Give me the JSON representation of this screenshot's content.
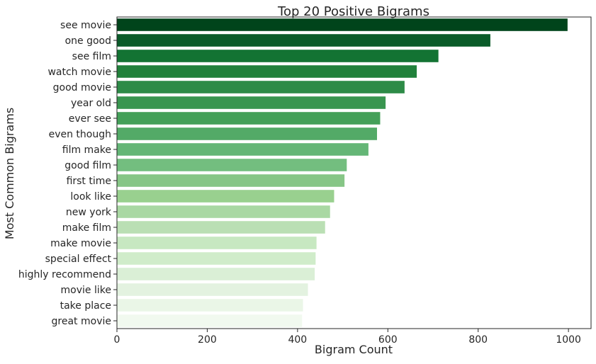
{
  "chart_data": {
    "type": "bar",
    "orientation": "horizontal",
    "title": "Top 20 Positive Bigrams",
    "xlabel": "Bigram Count",
    "ylabel": "Most Common Bigrams",
    "xlim": [
      0,
      1050
    ],
    "xticks": [
      0,
      200,
      400,
      600,
      800,
      1000
    ],
    "grid": false,
    "categories": [
      "see movie",
      "one good",
      "see film",
      "watch movie",
      "good movie",
      "year old",
      "ever see",
      "even though",
      "film make",
      "good film",
      "first time",
      "look like",
      "new york",
      "make film",
      "make movie",
      "special effect",
      "highly recommend",
      "movie like",
      "take place",
      "great movie"
    ],
    "values": [
      998,
      827,
      712,
      664,
      637,
      595,
      583,
      576,
      557,
      509,
      504,
      481,
      472,
      461,
      442,
      440,
      438,
      423,
      412,
      410
    ],
    "colors": [
      "#00441b",
      "#0a5b29",
      "#137333",
      "#21813b",
      "#2d8b47",
      "#38954f",
      "#44a059",
      "#53aa67",
      "#64b676",
      "#73be7f",
      "#86c686",
      "#99d08f",
      "#a9d8a3",
      "#badfb4",
      "#c7e8c1",
      "#d0ecca",
      "#daefd6",
      "#e3f2e0",
      "#eaf6e7",
      "#f1f9ef"
    ]
  }
}
